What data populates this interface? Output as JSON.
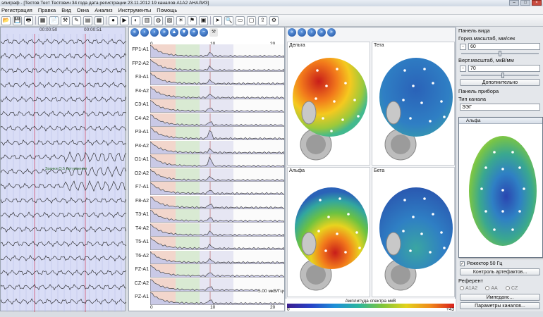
{
  "window": {
    "title": "элиграф - [Тестов Тест Тестович 34 года дата регистрации 23.11.2012 19 каналов A1A2 АНАЛИЗ]"
  },
  "menu": [
    "Регистрация",
    "Правка",
    "Вид",
    "Окна",
    "Анализ",
    "Инструменты",
    "Помощь"
  ],
  "toolbar": {
    "icons": [
      "open-icon",
      "save-icon",
      "print-icon",
      "montage-icon",
      "file-icon",
      "tools-icon",
      "edit-icon",
      "grid-icon",
      "table-icon",
      "record-icon",
      "play-icon",
      "filter-icon",
      "spectrum-icon",
      "mapping-icon",
      "stats-icon",
      "photostim-icon",
      "marker-icon",
      "report-icon",
      "pointer-icon",
      "zoom-icon",
      "view-icon",
      "preview-icon",
      "export-icon",
      "settings-icon"
    ]
  },
  "eeg": {
    "times": [
      "00:00:50",
      "00:00:51"
    ],
    "annotation": "Зрачки О.5 потупления"
  },
  "spectrum": {
    "channels": [
      "FP1-A1",
      "FP2-A2",
      "F3-A1",
      "F4-A2",
      "C3-A1",
      "C4-A2",
      "P3-A1",
      "P4-A2",
      "O1-A1",
      "O2-A2",
      "F7-A1",
      "F8-A2",
      "T3-A1",
      "T4-A2",
      "T5-A1",
      "T6-A2",
      "FZ-A1",
      "CZ-A2",
      "PZ-A1"
    ],
    "axis_ticks": [
      "0",
      "10",
      "20"
    ],
    "scale_label": "5.00 мкВ/Гц"
  },
  "maps": {
    "titles": [
      "Дельта",
      "Тета",
      "Альфа",
      "Бета"
    ],
    "colorbar_label": "Амплитуда спектра мкВ",
    "colorbar_min": "0",
    "colorbar_max": "+43"
  },
  "control": {
    "view_panel": "Панель вида",
    "horiz_label": "Гориз.масштаб, мм/сек",
    "horiz_value": "60",
    "vert_label": "Верт.масштаб, мкВ/мм",
    "vert_value": "70",
    "more_button": "Дополнительно",
    "device_panel": "Панель прибора",
    "channel_type_label": "Тип канала",
    "channel_type_value": "ЭЭГ",
    "notch_label": "Режектор 50 Гц",
    "artifact_button": "Контроль артефактов...",
    "referent_label": "Референт",
    "ref_options": [
      "A1A2",
      "AA",
      "CZ"
    ],
    "impedance_button": "Импеданс...",
    "channel_params_button": "Параметры каналов..."
  },
  "popup": {
    "title": "Альфа"
  }
}
